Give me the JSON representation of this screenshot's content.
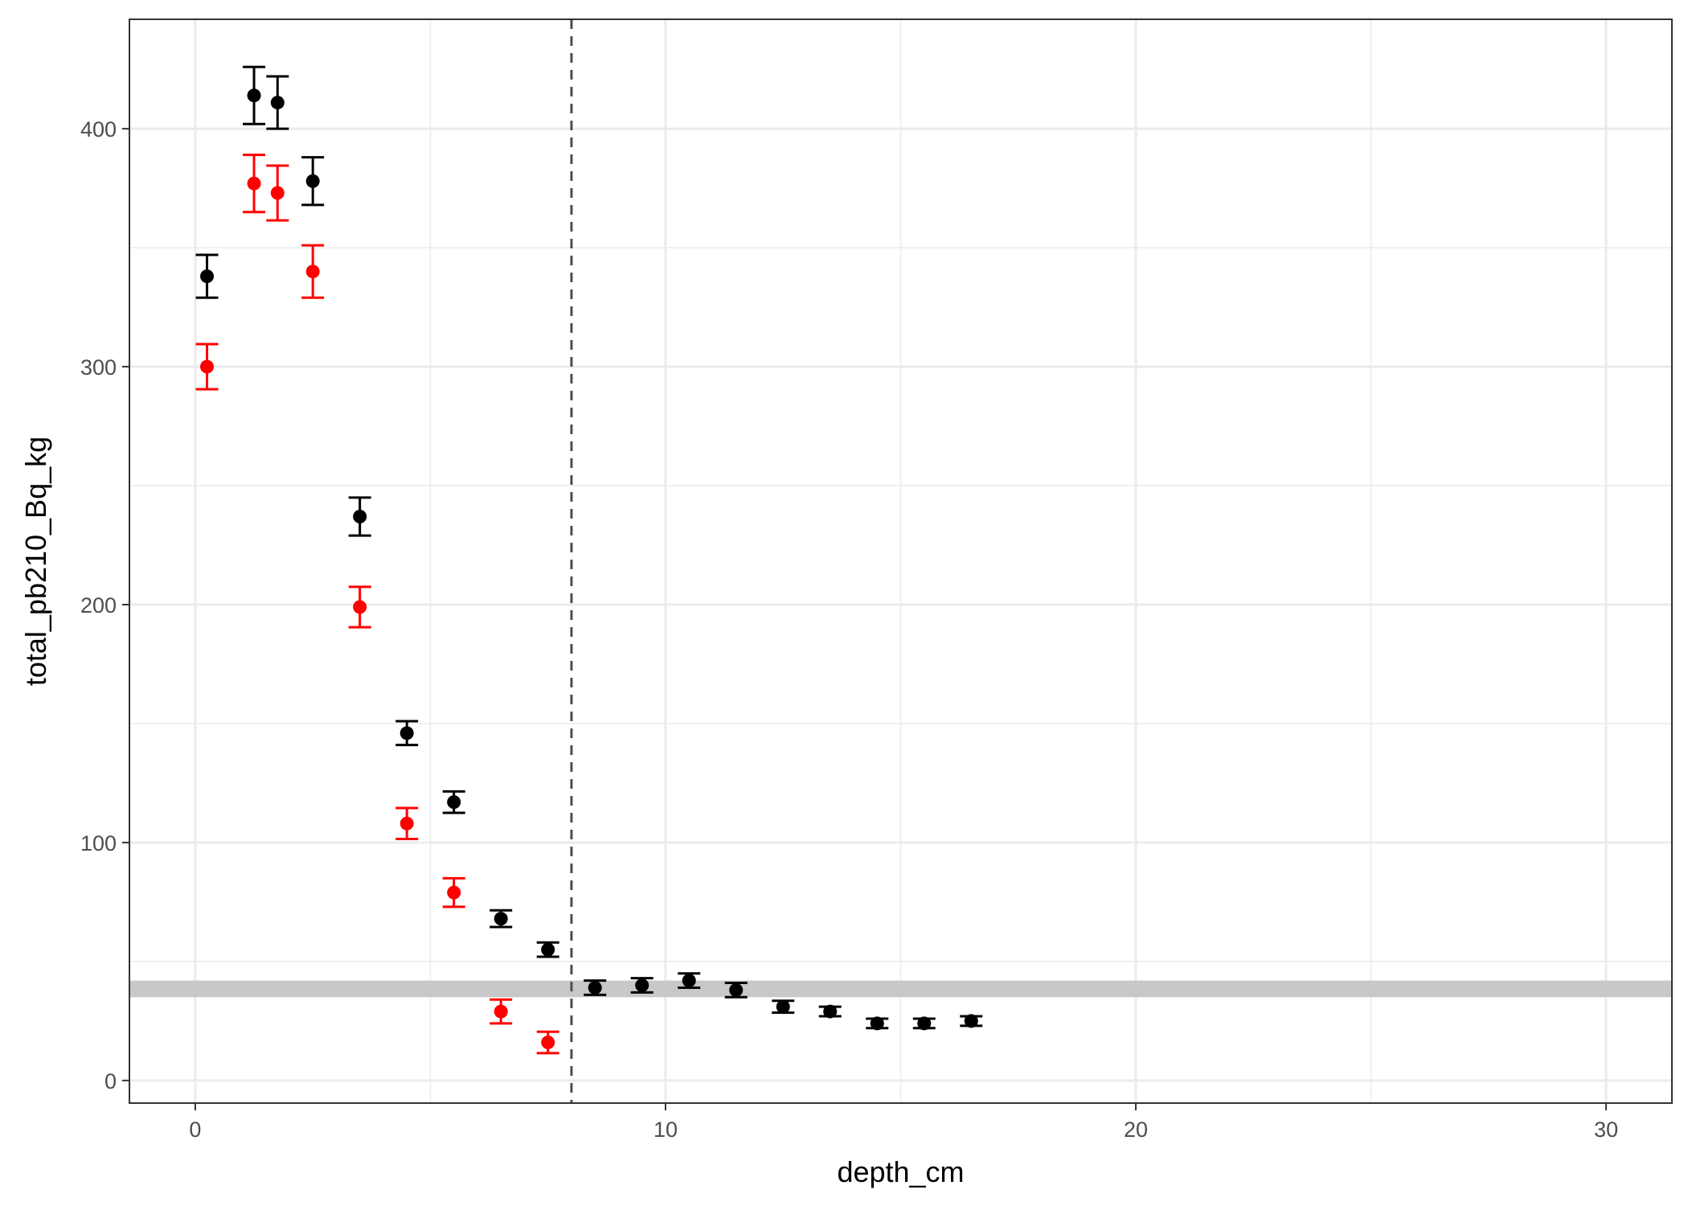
{
  "chart_data": {
    "type": "scatter",
    "title": "",
    "xlabel": "depth_cm",
    "ylabel": "total_pb210_Bq_kg",
    "xlim": [
      -1.4,
      31.4
    ],
    "ylim": [
      -9.5,
      446
    ],
    "x_ticks": [
      0,
      10,
      20,
      30
    ],
    "y_ticks": [
      0,
      100,
      200,
      300,
      400
    ],
    "x_tick_labels": [
      "0",
      "10",
      "20",
      "30"
    ],
    "y_tick_labels": [
      "0",
      "100",
      "200",
      "300",
      "400"
    ],
    "grid": true,
    "legend": "none",
    "reference_vline": {
      "x": 8,
      "style": "dashed",
      "color": "#4d4d4d"
    },
    "reference_band": {
      "ymin": 35,
      "ymax": 42,
      "color": "#c8c8c8"
    },
    "series": [
      {
        "color": "#000000",
        "points": [
          {
            "x": 0.25,
            "y": 338,
            "err": 9
          },
          {
            "x": 1.25,
            "y": 414,
            "err": 12
          },
          {
            "x": 1.75,
            "y": 411,
            "err": 11
          },
          {
            "x": 2.5,
            "y": 378,
            "err": 10
          },
          {
            "x": 3.5,
            "y": 237,
            "err": 8
          },
          {
            "x": 4.5,
            "y": 146,
            "err": 5
          },
          {
            "x": 5.5,
            "y": 117,
            "err": 4.5
          },
          {
            "x": 6.5,
            "y": 68,
            "err": 3.5
          },
          {
            "x": 7.5,
            "y": 55,
            "err": 3
          },
          {
            "x": 8.5,
            "y": 39,
            "err": 3
          },
          {
            "x": 9.5,
            "y": 40,
            "err": 3
          },
          {
            "x": 10.5,
            "y": 42,
            "err": 3
          },
          {
            "x": 11.5,
            "y": 38,
            "err": 3
          },
          {
            "x": 12.5,
            "y": 31,
            "err": 2.5
          },
          {
            "x": 13.5,
            "y": 29,
            "err": 2
          },
          {
            "x": 14.5,
            "y": 24,
            "err": 2
          },
          {
            "x": 15.5,
            "y": 24,
            "err": 2
          },
          {
            "x": 16.5,
            "y": 25,
            "err": 2
          }
        ]
      },
      {
        "color": "#ff0000",
        "points": [
          {
            "x": 0.25,
            "y": 300,
            "err": 9.5
          },
          {
            "x": 1.25,
            "y": 377,
            "err": 12
          },
          {
            "x": 1.75,
            "y": 373,
            "err": 11.5
          },
          {
            "x": 2.5,
            "y": 340,
            "err": 11
          },
          {
            "x": 3.5,
            "y": 199,
            "err": 8.5
          },
          {
            "x": 4.5,
            "y": 108,
            "err": 6.5
          },
          {
            "x": 5.5,
            "y": 79,
            "err": 6
          },
          {
            "x": 6.5,
            "y": 29,
            "err": 5
          },
          {
            "x": 7.5,
            "y": 16,
            "err": 4.5
          }
        ]
      }
    ]
  }
}
